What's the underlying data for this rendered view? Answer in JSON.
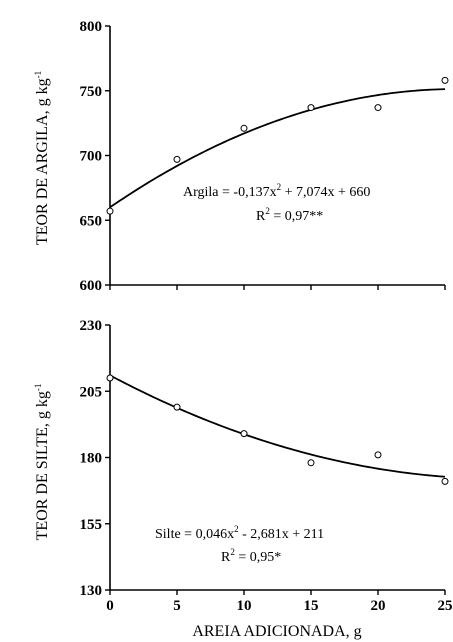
{
  "chart_data": [
    {
      "type": "scatter",
      "ylabel": "TEOR DE ARGILA, g kg",
      "ylabel_sup": "-1",
      "ylim": [
        600,
        800
      ],
      "yticks": [
        "600",
        "650",
        "700",
        "750",
        "800"
      ],
      "xlim": [
        0,
        25
      ],
      "series": [
        {
          "x": [
            0,
            5,
            10,
            15,
            20,
            25
          ],
          "values": [
            657,
            697,
            721,
            737,
            737,
            758
          ]
        }
      ],
      "fit": {
        "a": -0.137,
        "b": 7.074,
        "c": 660
      },
      "equation": {
        "line1_pre": "Argila = -0,137x",
        "line1_sup": "2",
        "line1_post": " + 7,074x + 660",
        "line2_pre": "R",
        "line2_sup": "2",
        "line2_post": " = 0,97**"
      }
    },
    {
      "type": "scatter",
      "ylabel": "TEOR DE SILTE, g kg",
      "ylabel_sup": "-1",
      "ylim": [
        130,
        230
      ],
      "yticks": [
        "130",
        "155",
        "180",
        "205",
        "230"
      ],
      "xlim": [
        0,
        25
      ],
      "xticks": [
        "0",
        "5",
        "10",
        "15",
        "20",
        "25"
      ],
      "xlabel": "AREIA ADICIONADA, g",
      "series": [
        {
          "x": [
            0,
            5,
            10,
            15,
            20,
            25
          ],
          "values": [
            210,
            199,
            189,
            178,
            181,
            171
          ]
        }
      ],
      "fit": {
        "a": 0.046,
        "b": -2.681,
        "c": 211
      },
      "equation": {
        "line1_pre": "Silte = 0,046x",
        "line1_sup": "2",
        "line1_post": " - 2,681x + 211",
        "line2_pre": "R",
        "line2_sup": "2",
        "line2_post": " = 0,95*"
      }
    }
  ]
}
